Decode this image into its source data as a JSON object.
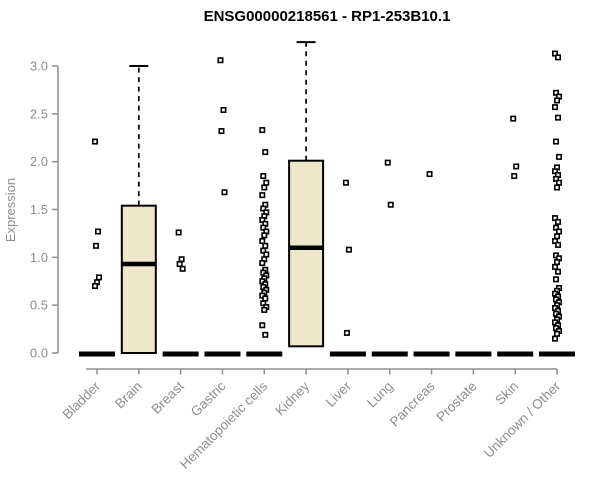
{
  "chart_data": {
    "type": "boxplot",
    "title": "ENSG00000218561 - RP1-253B10.1",
    "ylabel": "Expression",
    "yticks": [
      "0.0",
      "0.5",
      "1.0",
      "1.5",
      "2.0",
      "2.5",
      "3.0"
    ],
    "ylim": [
      0,
      3.3
    ],
    "grid": false,
    "legend": "none",
    "box_fill_color": "#EDE6C8",
    "box_border_color": "#000000",
    "axis_color": "#8e8e8e",
    "categories": [
      "Bladder",
      "Brain",
      "Breast",
      "Gastric",
      "Hematopoietic cells",
      "Kidney",
      "Liver",
      "Lung",
      "Pancreas",
      "Prostate",
      "Skin",
      "Unknown / Other"
    ],
    "groups": [
      {
        "category": "Bladder",
        "q1": 0,
        "median": 0,
        "q3": 0,
        "whisker_high": 0,
        "outliers": [
          2.21,
          1.27,
          1.12,
          0.79,
          0.74,
          0.7
        ]
      },
      {
        "category": "Brain",
        "q1": 0,
        "median": 0.93,
        "q3": 1.54,
        "whisker_high": 3.0,
        "outliers": []
      },
      {
        "category": "Breast",
        "q1": 0,
        "median": 0,
        "q3": 0,
        "whisker_high": 0,
        "outliers": [
          1.26,
          0.98,
          0.93,
          0.88
        ]
      },
      {
        "category": "Gastric",
        "q1": 0,
        "median": 0,
        "q3": 0,
        "whisker_high": 0,
        "outliers": [
          3.06,
          2.54,
          2.32,
          1.68
        ]
      },
      {
        "category": "Hematopoietic cells",
        "q1": 0,
        "median": 0,
        "q3": 0,
        "whisker_high": 0,
        "outliers": [
          2.33,
          2.1,
          1.85,
          1.78,
          1.73,
          1.65,
          1.55,
          1.51,
          1.47,
          1.43,
          1.39,
          1.35,
          1.31,
          1.27,
          1.23,
          1.17,
          1.12,
          1.07,
          1.03,
          0.98,
          0.94,
          0.87,
          0.84,
          0.81,
          0.78,
          0.75,
          0.72,
          0.69,
          0.66,
          0.63,
          0.6,
          0.57,
          0.52,
          0.48,
          0.45,
          0.29,
          0.19
        ]
      },
      {
        "category": "Kidney",
        "q1": 0.07,
        "median": 1.1,
        "q3": 2.01,
        "whisker_high": 3.25,
        "outliers": []
      },
      {
        "category": "Liver",
        "q1": 0,
        "median": 0,
        "q3": 0,
        "whisker_high": 0,
        "outliers": [
          1.78,
          1.08,
          0.21
        ]
      },
      {
        "category": "Lung",
        "q1": 0,
        "median": 0,
        "q3": 0,
        "whisker_high": 0,
        "outliers": [
          1.99,
          1.55
        ]
      },
      {
        "category": "Pancreas",
        "q1": 0,
        "median": 0,
        "q3": 0,
        "whisker_high": 0,
        "outliers": [
          1.87
        ]
      },
      {
        "category": "Prostate",
        "q1": 0,
        "median": 0,
        "q3": 0,
        "whisker_high": 0,
        "outliers": []
      },
      {
        "category": "Skin",
        "q1": 0,
        "median": 0,
        "q3": 0,
        "whisker_high": 0,
        "outliers": [
          2.45,
          1.95,
          1.85
        ]
      },
      {
        "category": "Unknown / Other",
        "q1": 0,
        "median": 0,
        "q3": 0,
        "whisker_high": 0,
        "outliers": [
          3.13,
          3.09,
          2.72,
          2.68,
          2.64,
          2.57,
          2.46,
          2.21,
          2.05,
          1.94,
          1.9,
          1.86,
          1.82,
          1.78,
          1.73,
          1.41,
          1.37,
          1.31,
          1.27,
          1.22,
          1.17,
          1.13,
          1.02,
          0.99,
          0.95,
          0.9,
          0.85,
          0.77,
          0.68,
          0.65,
          0.62,
          0.59,
          0.56,
          0.53,
          0.5,
          0.47,
          0.44,
          0.41,
          0.38,
          0.35,
          0.32,
          0.29,
          0.26,
          0.23,
          0.2,
          0.15
        ]
      }
    ]
  }
}
